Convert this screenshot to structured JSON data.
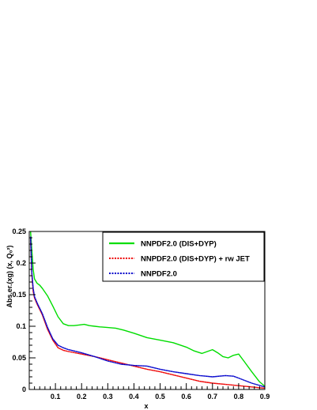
{
  "chart_data": {
    "type": "line",
    "xlabel": "x",
    "ylabel": "Abs.er.(xg) (x, Q₀²)",
    "xlim": [
      0.0,
      0.9
    ],
    "ylim": [
      0.0,
      0.25
    ],
    "x_ticks": [
      "0.1",
      "0.2",
      "0.3",
      "0.4",
      "0.5",
      "0.6",
      "0.7",
      "0.8",
      "0.9"
    ],
    "y_ticks": [
      "0",
      "0.05",
      "0.1",
      "0.15",
      "0.2",
      "0.25"
    ],
    "grid": false,
    "legend_position": "top-right",
    "series": [
      {
        "name": "NNPDF2.0 (DIS+DYP)",
        "color": "#00dd00",
        "style": "solid",
        "points": [
          [
            0.005,
            0.25
          ],
          [
            0.01,
            0.22
          ],
          [
            0.015,
            0.19
          ],
          [
            0.02,
            0.175
          ],
          [
            0.03,
            0.168
          ],
          [
            0.04,
            0.165
          ],
          [
            0.05,
            0.16
          ],
          [
            0.07,
            0.148
          ],
          [
            0.09,
            0.132
          ],
          [
            0.11,
            0.115
          ],
          [
            0.13,
            0.104
          ],
          [
            0.15,
            0.101
          ],
          [
            0.17,
            0.101
          ],
          [
            0.19,
            0.102
          ],
          [
            0.21,
            0.103
          ],
          [
            0.23,
            0.101
          ],
          [
            0.25,
            0.1
          ],
          [
            0.27,
            0.099
          ],
          [
            0.3,
            0.098
          ],
          [
            0.33,
            0.097
          ],
          [
            0.36,
            0.094
          ],
          [
            0.4,
            0.089
          ],
          [
            0.45,
            0.082
          ],
          [
            0.5,
            0.078
          ],
          [
            0.55,
            0.074
          ],
          [
            0.6,
            0.067
          ],
          [
            0.63,
            0.061
          ],
          [
            0.66,
            0.057
          ],
          [
            0.68,
            0.06
          ],
          [
            0.7,
            0.063
          ],
          [
            0.72,
            0.058
          ],
          [
            0.74,
            0.052
          ],
          [
            0.76,
            0.05
          ],
          [
            0.78,
            0.054
          ],
          [
            0.8,
            0.056
          ],
          [
            0.82,
            0.045
          ],
          [
            0.85,
            0.028
          ],
          [
            0.88,
            0.012
          ],
          [
            0.9,
            0.005
          ]
        ]
      },
      {
        "name": "NNPDF2.0 (DIS+DYP) + rw JET",
        "color": "#ee0000",
        "style": "dotted",
        "points": [
          [
            0.005,
            0.24
          ],
          [
            0.01,
            0.18
          ],
          [
            0.015,
            0.155
          ],
          [
            0.02,
            0.145
          ],
          [
            0.03,
            0.135
          ],
          [
            0.05,
            0.118
          ],
          [
            0.07,
            0.095
          ],
          [
            0.09,
            0.078
          ],
          [
            0.11,
            0.066
          ],
          [
            0.13,
            0.062
          ],
          [
            0.15,
            0.06
          ],
          [
            0.2,
            0.056
          ],
          [
            0.25,
            0.052
          ],
          [
            0.3,
            0.047
          ],
          [
            0.35,
            0.042
          ],
          [
            0.4,
            0.037
          ],
          [
            0.45,
            0.032
          ],
          [
            0.5,
            0.028
          ],
          [
            0.55,
            0.023
          ],
          [
            0.6,
            0.018
          ],
          [
            0.65,
            0.013
          ],
          [
            0.7,
            0.01
          ],
          [
            0.75,
            0.008
          ],
          [
            0.8,
            0.006
          ],
          [
            0.85,
            0.004
          ],
          [
            0.9,
            0.002
          ]
        ]
      },
      {
        "name": "NNPDF2.0",
        "color": "#0000cc",
        "style": "dotted",
        "points": [
          [
            0.005,
            0.242
          ],
          [
            0.01,
            0.185
          ],
          [
            0.015,
            0.16
          ],
          [
            0.02,
            0.147
          ],
          [
            0.03,
            0.137
          ],
          [
            0.05,
            0.12
          ],
          [
            0.07,
            0.098
          ],
          [
            0.09,
            0.08
          ],
          [
            0.11,
            0.07
          ],
          [
            0.13,
            0.066
          ],
          [
            0.15,
            0.063
          ],
          [
            0.2,
            0.058
          ],
          [
            0.25,
            0.052
          ],
          [
            0.3,
            0.045
          ],
          [
            0.35,
            0.04
          ],
          [
            0.4,
            0.038
          ],
          [
            0.45,
            0.037
          ],
          [
            0.5,
            0.032
          ],
          [
            0.55,
            0.028
          ],
          [
            0.6,
            0.025
          ],
          [
            0.65,
            0.022
          ],
          [
            0.7,
            0.02
          ],
          [
            0.75,
            0.022
          ],
          [
            0.78,
            0.021
          ],
          [
            0.8,
            0.018
          ],
          [
            0.85,
            0.01
          ],
          [
            0.9,
            0.004
          ]
        ]
      }
    ]
  }
}
